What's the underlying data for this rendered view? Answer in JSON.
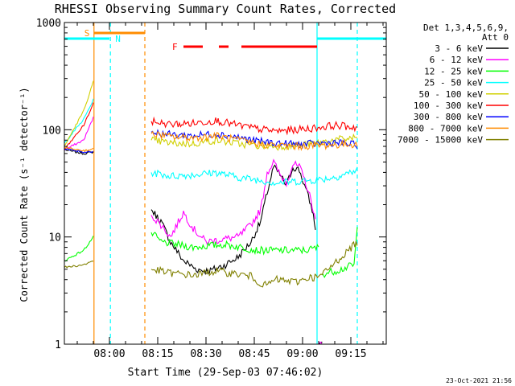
{
  "chart_data": {
    "type": "line",
    "title": "RHESSI Observing Summary Count Rates, Corrected",
    "xlabel": "Start Time (29-Sep-03 07:46:02)",
    "ylabel": "Corrected Count Rate (s⁻¹ detector⁻¹)",
    "y_scale": "log",
    "ylim": [
      1,
      1000
    ],
    "xlim_minutes": [
      0,
      100
    ],
    "x_ticks": [
      {
        "label": "08:00",
        "min": 14
      },
      {
        "label": "08:15",
        "min": 29
      },
      {
        "label": "08:30",
        "min": 44
      },
      {
        "label": "08:45",
        "min": 59
      },
      {
        "label": "09:00",
        "min": 74
      },
      {
        "label": "09:15",
        "min": 89
      }
    ],
    "y_ticks": [
      {
        "label": "1",
        "value": 1
      },
      {
        "label": "10",
        "value": 10
      },
      {
        "label": "100",
        "value": 100
      },
      {
        "label": "1000",
        "value": 1000
      }
    ],
    "legend": {
      "header": [
        "Det 1,3,4,5,6,9,",
        "Att 0"
      ],
      "position": "top-right outside"
    },
    "series": [
      {
        "name": "3 - 6 keV",
        "color": "#000000",
        "points": [
          [
            0,
            65
          ],
          [
            6,
            60
          ],
          [
            9,
            62
          ],
          [
            9.2,
            null
          ],
          [
            27,
            18
          ],
          [
            30,
            14
          ],
          [
            33,
            9
          ],
          [
            37,
            6
          ],
          [
            41,
            5
          ],
          [
            45,
            4.8
          ],
          [
            50,
            5.5
          ],
          [
            54,
            6.5
          ],
          [
            58,
            9
          ],
          [
            61,
            14
          ],
          [
            63,
            26
          ],
          [
            65,
            45
          ],
          [
            67,
            38
          ],
          [
            69,
            30
          ],
          [
            71,
            45
          ],
          [
            73,
            42
          ],
          [
            75,
            28
          ],
          [
            77,
            18
          ],
          [
            78,
            12
          ],
          [
            78.3,
            null
          ],
          [
            79,
            1
          ],
          [
            80,
            1
          ]
        ]
      },
      {
        "name": "6 - 12 keV",
        "color": "#ff00ff",
        "points": [
          [
            0,
            65
          ],
          [
            6,
            80
          ],
          [
            9,
            130
          ],
          [
            9.2,
            null
          ],
          [
            27,
            16
          ],
          [
            30,
            13
          ],
          [
            33,
            10
          ],
          [
            37,
            17
          ],
          [
            40,
            12
          ],
          [
            44,
            9
          ],
          [
            49,
            9.5
          ],
          [
            54,
            10
          ],
          [
            58,
            13
          ],
          [
            61,
            18
          ],
          [
            63,
            40
          ],
          [
            65,
            50
          ],
          [
            67,
            38
          ],
          [
            69,
            32
          ],
          [
            71,
            48
          ],
          [
            73,
            45
          ],
          [
            75,
            32
          ],
          [
            77,
            20
          ],
          [
            78,
            14
          ],
          [
            78.3,
            null
          ],
          [
            79,
            1
          ],
          [
            80,
            1
          ]
        ]
      },
      {
        "name": "12 - 25 keV",
        "color": "#00ff00",
        "points": [
          [
            0,
            6
          ],
          [
            6,
            7.5
          ],
          [
            9,
            10
          ],
          [
            9.2,
            null
          ],
          [
            27,
            11
          ],
          [
            30,
            9
          ],
          [
            35,
            8.5
          ],
          [
            40,
            8
          ],
          [
            45,
            8.3
          ],
          [
            50,
            8.5
          ],
          [
            55,
            8
          ],
          [
            60,
            7.5
          ],
          [
            65,
            7.5
          ],
          [
            70,
            7.5
          ],
          [
            75,
            7.5
          ],
          [
            79,
            8
          ],
          [
            79.4,
            null
          ],
          [
            80,
            4.5
          ],
          [
            86,
            5
          ],
          [
            90,
            5.5
          ],
          [
            91,
            12
          ]
        ]
      },
      {
        "name": "25 - 50 keV",
        "color": "#00ffff",
        "points": [
          [
            0,
            75
          ],
          [
            6,
            125
          ],
          [
            9,
            190
          ],
          [
            9.2,
            null
          ],
          [
            27,
            40
          ],
          [
            33,
            37
          ],
          [
            40,
            38
          ],
          [
            47,
            40
          ],
          [
            54,
            36
          ],
          [
            60,
            34
          ],
          [
            66,
            32
          ],
          [
            72,
            33
          ],
          [
            78,
            34
          ],
          [
            84,
            36
          ],
          [
            91,
            42
          ]
        ]
      },
      {
        "name": "50 - 100 keV",
        "color": "#d0d000",
        "points": [
          [
            0,
            70
          ],
          [
            6,
            150
          ],
          [
            9,
            280
          ],
          [
            9.2,
            null
          ],
          [
            27,
            80
          ],
          [
            33,
            75
          ],
          [
            40,
            74
          ],
          [
            47,
            80
          ],
          [
            54,
            74
          ],
          [
            60,
            71
          ],
          [
            66,
            70
          ],
          [
            72,
            71
          ],
          [
            78,
            75
          ],
          [
            84,
            80
          ],
          [
            91,
            85
          ]
        ]
      },
      {
        "name": "100 - 300 keV",
        "color": "#ff0000",
        "points": [
          [
            0,
            65
          ],
          [
            6,
            110
          ],
          [
            9,
            175
          ],
          [
            9.2,
            null
          ],
          [
            27,
            120
          ],
          [
            33,
            112
          ],
          [
            40,
            115
          ],
          [
            47,
            122
          ],
          [
            54,
            110
          ],
          [
            60,
            102
          ],
          [
            66,
            97
          ],
          [
            72,
            100
          ],
          [
            78,
            104
          ],
          [
            84,
            110
          ],
          [
            91,
            105
          ]
        ]
      },
      {
        "name": "300 - 800 keV",
        "color": "#0000ff",
        "points": [
          [
            0,
            66
          ],
          [
            6,
            62
          ],
          [
            9,
            63
          ],
          [
            9.2,
            null
          ],
          [
            27,
            95
          ],
          [
            33,
            90
          ],
          [
            40,
            88
          ],
          [
            47,
            92
          ],
          [
            54,
            85
          ],
          [
            60,
            78
          ],
          [
            66,
            75
          ],
          [
            72,
            73
          ],
          [
            78,
            74
          ],
          [
            84,
            76
          ],
          [
            91,
            72
          ]
        ]
      },
      {
        "name": "800 - 7000 keV",
        "color": "#ff8c00",
        "points": [
          [
            0,
            68
          ],
          [
            6,
            64
          ],
          [
            9,
            66
          ],
          [
            9.2,
            null
          ],
          [
            27,
            92
          ],
          [
            33,
            86
          ],
          [
            40,
            84
          ],
          [
            47,
            88
          ],
          [
            54,
            80
          ],
          [
            60,
            74
          ],
          [
            66,
            71
          ],
          [
            72,
            70
          ],
          [
            78,
            71
          ],
          [
            84,
            72
          ],
          [
            91,
            74
          ]
        ]
      },
      {
        "name": "7000 - 15000 keV",
        "color": "#808000",
        "points": [
          [
            0,
            5.2
          ],
          [
            6,
            5.5
          ],
          [
            9,
            6
          ],
          [
            9.2,
            null
          ],
          [
            27,
            5
          ],
          [
            33,
            4.6
          ],
          [
            40,
            4.4
          ],
          [
            47,
            4.8
          ],
          [
            54,
            4.5
          ],
          [
            58,
            4.3
          ],
          [
            62,
            3.5
          ],
          [
            66,
            4
          ],
          [
            72,
            3.8
          ],
          [
            76,
            4.2
          ],
          [
            79,
            4.2
          ],
          [
            82,
            5
          ],
          [
            86,
            6.5
          ],
          [
            91,
            9
          ]
        ]
      }
    ],
    "flags": {
      "S": {
        "label": "S",
        "color": "#ff8c00",
        "start_min": 9.2,
        "end_min": 25
      },
      "N": {
        "label": "N",
        "color": "#00ffff",
        "segments": [
          [
            0,
            14
          ],
          [
            78.5,
            100
          ]
        ]
      },
      "F": {
        "label": "F",
        "color": "#ff0000",
        "segments": [
          [
            37,
            43
          ],
          [
            48,
            51
          ],
          [
            55,
            78.5
          ]
        ]
      }
    },
    "vlines": [
      {
        "min": 9.2,
        "color": "#ff8c00",
        "style": "solid"
      },
      {
        "min": 14.3,
        "color": "#00ffff",
        "style": "dashed"
      },
      {
        "min": 25,
        "color": "#ff8c00",
        "style": "dashed"
      },
      {
        "min": 78.5,
        "color": "#00ffff",
        "style": "solid"
      },
      {
        "min": 91,
        "color": "#00ffff",
        "style": "dashed"
      }
    ],
    "timestamp": "23-Oct-2021 21:56"
  }
}
